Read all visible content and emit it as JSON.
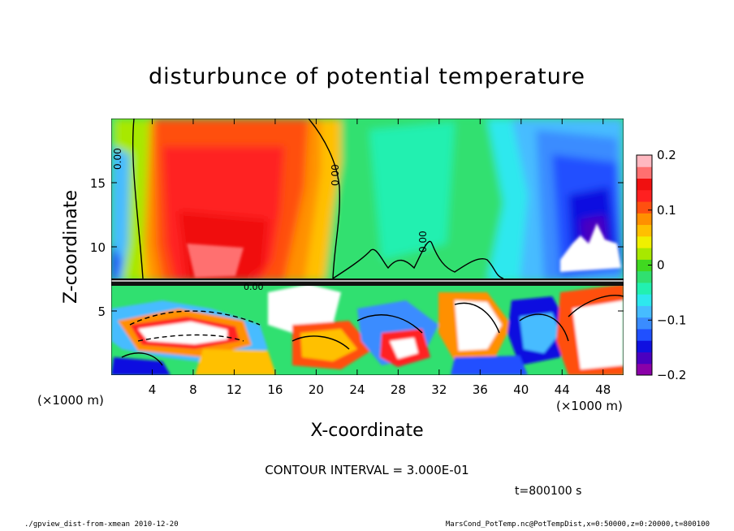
{
  "chart_data": {
    "type": "heatmap",
    "title": "disturbunce of potential temperature",
    "xlabel": "X-coordinate",
    "ylabel": "Z-coordinate",
    "x_unit_left": "(×1000 m)",
    "x_unit_right": "(×1000 m)",
    "xlim": [
      0,
      50
    ],
    "ylim": [
      0,
      20
    ],
    "xticks": [
      4,
      8,
      12,
      16,
      20,
      24,
      28,
      32,
      36,
      40,
      44,
      48
    ],
    "yticks": [
      5,
      10,
      15
    ],
    "colorbar": {
      "range": [
        -0.2,
        0.2
      ],
      "tick_values": [
        0.2,
        0.1,
        0,
        -0.1,
        -0.2
      ],
      "tick_labels": [
        "0.2",
        "0.1",
        "0",
        "−0.1",
        "−0.2"
      ],
      "colors": [
        "#8a00a8",
        "#4a00c0",
        "#1010e0",
        "#2050ff",
        "#3a8cff",
        "#46bcff",
        "#2ee8ee",
        "#22f0b0",
        "#30e070",
        "#40d820",
        "#a8e800",
        "#f0f000",
        "#ffc000",
        "#ff9000",
        "#ff5010",
        "#ff2020",
        "#f01010",
        "#ff7070",
        "#ffb8c0"
      ]
    },
    "contour_labels": [
      "0.00",
      "0.00",
      "0.00",
      "0.00"
    ],
    "contour_interval_text": "CONTOUR INTERVAL = 3.000E-01",
    "time_text": "t=800100 s",
    "footer_left": "./gpview_dist-from-xmean  2010-12-20",
    "footer_right": "MarsCond_PotTemp.nc@PotTempDist,x=0:50000,z=0:20000,t=800100"
  }
}
